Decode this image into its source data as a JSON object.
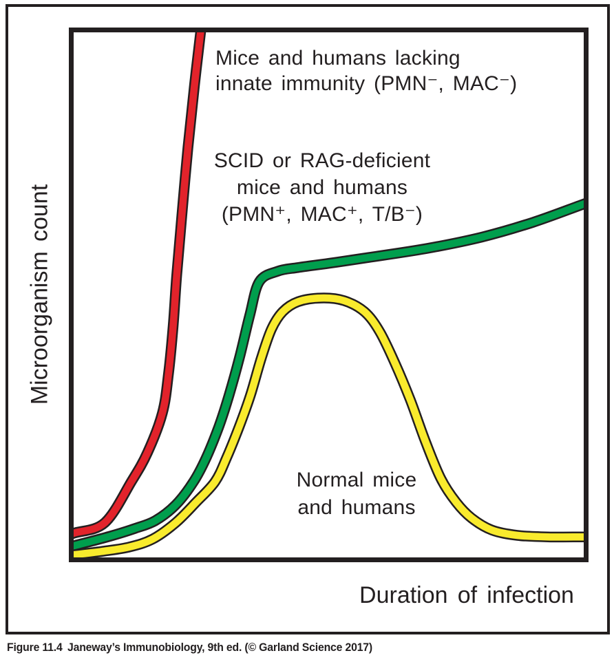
{
  "figure": {
    "caption_figure": "Figure 11.4",
    "caption_text": "Janeway’s Immunobiology, 9th ed. (© Garland Science 2017)"
  },
  "colors": {
    "outline": "#231f20",
    "frame": "#231f20",
    "background": "#ffffff"
  },
  "chart_data": {
    "type": "line",
    "title": "",
    "xlabel": "Duration of infection",
    "ylabel": "Microorganism count",
    "x_ticks": [],
    "y_ticks": [],
    "grid": false,
    "legend_position": "inline-annotations",
    "axis_note": "conceptual axes, no numeric scale; values below are relative 0–100 plot coordinates",
    "xlim": [
      0,
      100
    ],
    "ylim": [
      0,
      100
    ],
    "series": [
      {
        "name": "Mice and humans lacking innate immunity (PMN⁻, MAC⁻)",
        "color": "#e2232b",
        "shape": "steep exponential rise, exits top of plot",
        "points": [
          [
            0,
            4.6
          ],
          [
            6.1,
            6.6
          ],
          [
            11.3,
            14.4
          ],
          [
            14.5,
            20
          ],
          [
            17.4,
            27.5
          ],
          [
            18.6,
            35
          ],
          [
            19.5,
            44
          ],
          [
            20.2,
            53.7
          ],
          [
            21.2,
            65
          ],
          [
            22.4,
            78
          ],
          [
            23.7,
            90
          ],
          [
            25,
            101
          ]
        ]
      },
      {
        "name": "SCID or RAG-deficient mice and humans (PMN⁺, MAC⁺, T/B⁻)",
        "color": "#009e4d",
        "shape": "sigmoidal rise to plateau with slow continued growth",
        "points": [
          [
            0,
            2.2
          ],
          [
            7,
            4
          ],
          [
            12,
            5.5
          ],
          [
            16,
            7
          ],
          [
            20,
            10
          ],
          [
            23.5,
            14.4
          ],
          [
            26,
            19
          ],
          [
            28.5,
            25
          ],
          [
            30.5,
            31
          ],
          [
            32.5,
            38
          ],
          [
            34.5,
            46
          ],
          [
            36.4,
            52.5
          ],
          [
            40,
            54.5
          ],
          [
            44,
            55.2
          ],
          [
            50,
            56
          ],
          [
            57,
            57
          ],
          [
            69,
            58.8
          ],
          [
            80,
            61
          ],
          [
            90,
            63.8
          ],
          [
            100,
            67.3
          ]
        ]
      },
      {
        "name": "Normal mice and humans",
        "color": "#f9eb2d",
        "shape": "rise, peak, then decline to low persistent level",
        "points": [
          [
            0,
            0.5
          ],
          [
            6,
            1.2
          ],
          [
            11,
            2
          ],
          [
            15.5,
            3.5
          ],
          [
            20,
            6.6
          ],
          [
            24,
            10.5
          ],
          [
            27.7,
            14.4
          ],
          [
            30,
            19
          ],
          [
            32.5,
            25
          ],
          [
            34.7,
            31
          ],
          [
            36.8,
            38
          ],
          [
            38.8,
            43.5
          ],
          [
            41,
            46.8
          ],
          [
            44,
            48.7
          ],
          [
            48.5,
            49.4
          ],
          [
            53,
            48.9
          ],
          [
            57,
            46.8
          ],
          [
            60,
            43
          ],
          [
            63,
            37
          ],
          [
            66,
            30
          ],
          [
            69,
            22
          ],
          [
            72,
            15
          ],
          [
            75,
            10.5
          ],
          [
            78,
            7.5
          ],
          [
            82,
            5.2
          ],
          [
            87,
            4.2
          ],
          [
            93,
            3.9
          ],
          [
            100,
            3.9
          ]
        ]
      }
    ],
    "annotations": [
      {
        "id": "lacking-innate",
        "series": "red",
        "lines": [
          "Mice and humans lacking",
          "innate immunity (PMN⁻, MAC⁻)"
        ]
      },
      {
        "id": "scid-rag",
        "series": "green",
        "lines": [
          "SCID or RAG-deficient",
          "mice and humans",
          "(PMN⁺, MAC⁺, T/B⁻)"
        ]
      },
      {
        "id": "normal",
        "series": "yellow",
        "lines": [
          "Normal mice",
          "and humans"
        ]
      }
    ]
  }
}
